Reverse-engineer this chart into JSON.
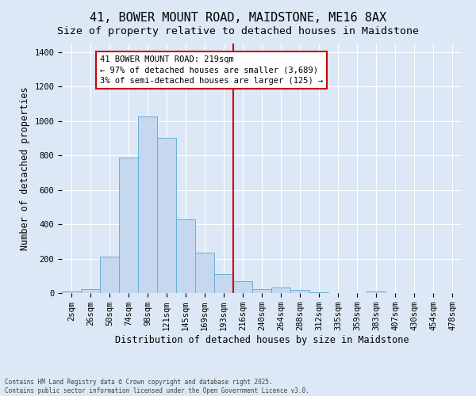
{
  "title": "41, BOWER MOUNT ROAD, MAIDSTONE, ME16 8AX",
  "subtitle": "Size of property relative to detached houses in Maidstone",
  "xlabel": "Distribution of detached houses by size in Maidstone",
  "ylabel": "Number of detached properties",
  "footer_line1": "Contains HM Land Registry data © Crown copyright and database right 2025.",
  "footer_line2": "Contains public sector information licensed under the Open Government Licence v3.0.",
  "bar_labels": [
    "2sqm",
    "26sqm",
    "50sqm",
    "74sqm",
    "98sqm",
    "121sqm",
    "145sqm",
    "169sqm",
    "193sqm",
    "216sqm",
    "240sqm",
    "264sqm",
    "288sqm",
    "312sqm",
    "335sqm",
    "359sqm",
    "383sqm",
    "407sqm",
    "430sqm",
    "454sqm",
    "478sqm"
  ],
  "bar_values": [
    8,
    25,
    210,
    785,
    1025,
    900,
    430,
    235,
    110,
    70,
    25,
    30,
    20,
    5,
    0,
    0,
    10,
    0,
    0,
    0,
    0
  ],
  "bar_color": "#c5d8f0",
  "bar_edge_color": "#6aaed6",
  "background_color": "#dce8f5",
  "ylim": [
    0,
    1450
  ],
  "yticks": [
    0,
    200,
    400,
    600,
    800,
    1000,
    1200,
    1400
  ],
  "vline_idx": 9,
  "vline_color": "#cc0000",
  "annotation_title": "41 BOWER MOUNT ROAD: 219sqm",
  "annotation_line2": "← 97% of detached houses are smaller (3,689)",
  "annotation_line3": "3% of semi-detached houses are larger (125) →",
  "title_fontsize": 11,
  "subtitle_fontsize": 9.5,
  "axis_label_fontsize": 8.5,
  "tick_fontsize": 7.5,
  "annotation_fontsize": 7.5,
  "footer_fontsize": 5.5
}
